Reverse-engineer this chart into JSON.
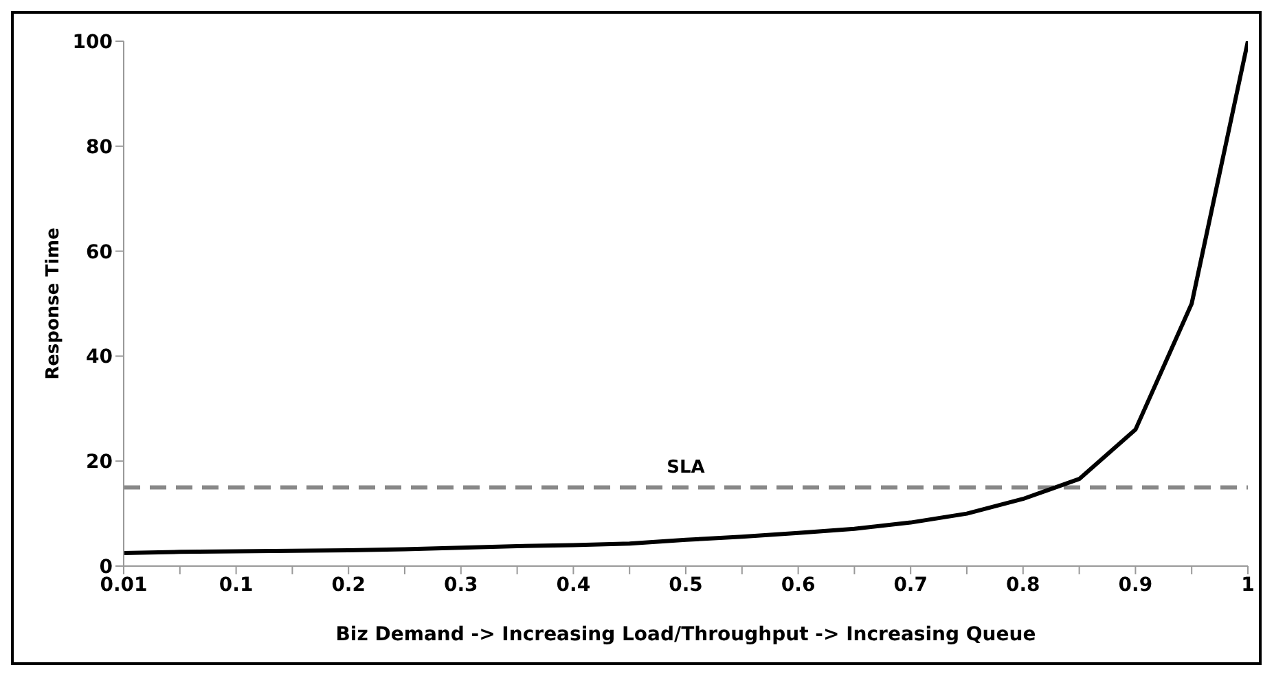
{
  "chart_data": {
    "type": "line",
    "xlabel": "Biz Demand -> Increasing Load/Throughput -> Increasing Queue",
    "ylabel": "Response Time",
    "categories": [
      "0.01",
      null,
      "0.1",
      null,
      "0.2",
      null,
      "0.3",
      null,
      "0.4",
      null,
      "0.5",
      null,
      "0.6",
      null,
      "0.7",
      null,
      "0.8",
      null,
      "0.9",
      null,
      "1"
    ],
    "series": [
      {
        "color": "#000000",
        "values": [
          2.5,
          2.7,
          2.8,
          2.9,
          3.0,
          3.2,
          3.5,
          3.8,
          4.0,
          4.3,
          5.0,
          5.6,
          6.3,
          7.1,
          8.3,
          10,
          12.8,
          16.6,
          26,
          50,
          100
        ]
      }
    ],
    "ylim": [
      0,
      100
    ],
    "yticks": [
      0,
      20,
      40,
      60,
      80,
      100
    ],
    "grid": false,
    "marker": "none",
    "line_style": "solid",
    "ref_lines": [
      {
        "axis": "y",
        "value": 15,
        "label": "SLA",
        "color": "#888888",
        "line_style": "dashed"
      }
    ]
  }
}
